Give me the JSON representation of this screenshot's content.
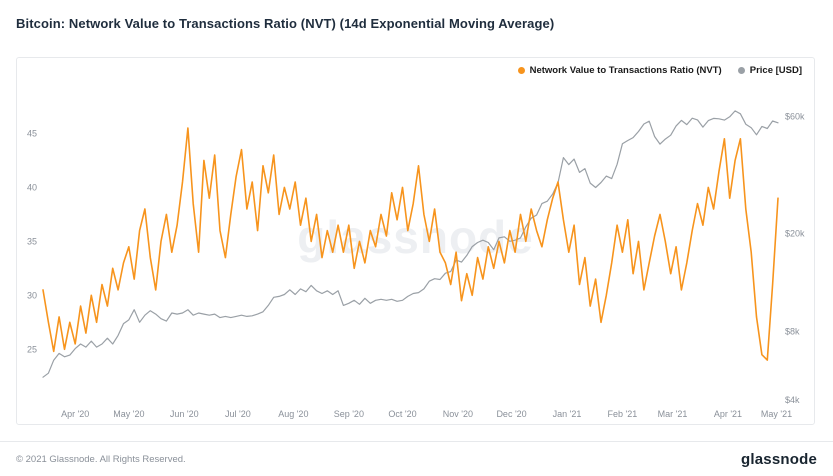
{
  "page": {
    "title": "Bitcoin: Network Value to Transactions Ratio (NVT) (14d Exponential Moving Average)",
    "watermark": "glassnode",
    "footer_copyright": "© 2021 Glassnode. All Rights Reserved.",
    "footer_logo": "glassnode"
  },
  "chart_data": {
    "type": "line",
    "title": "Bitcoin: Network Value to Transactions Ratio (NVT) (14d Exponential Moving Average)",
    "grid": false,
    "legend_position": "top-right",
    "series": [
      {
        "name": "Price [USD]",
        "axis": "right",
        "scale": "log",
        "color": "#9aa0a6",
        "values": [
          5200,
          5400,
          6100,
          6500,
          6300,
          6400,
          6800,
          7100,
          6900,
          7300,
          6900,
          7100,
          7500,
          7100,
          7700,
          8600,
          8900,
          9800,
          8700,
          9300,
          9700,
          9400,
          9000,
          8800,
          9500,
          9400,
          9500,
          9800,
          9300,
          9500,
          9400,
          9300,
          9400,
          9100,
          9200,
          9100,
          9200,
          9300,
          9200,
          9250,
          9400,
          9600,
          10200,
          11000,
          11100,
          11300,
          11800,
          11300,
          11900,
          11600,
          12300,
          11700,
          11400,
          11700,
          11300,
          11700,
          10200,
          10400,
          10700,
          10300,
          10900,
          10400,
          10700,
          10800,
          10700,
          10800,
          10600,
          10700,
          11100,
          11400,
          11500,
          11900,
          12800,
          13100,
          13000,
          13800,
          14000,
          15600,
          15300,
          16300,
          17700,
          18400,
          18800,
          18400,
          17200,
          19200,
          19400,
          18600,
          18800,
          19200,
          21300,
          23100,
          23800,
          26500,
          27100,
          29000,
          32200,
          40800,
          38200,
          40200,
          35500,
          36800,
          32100,
          30800,
          32300,
          34300,
          33500,
          38300,
          46400,
          47900,
          49200,
          52100,
          55900,
          57400,
          49700,
          46300,
          48500,
          50300,
          54900,
          57800,
          55600,
          59000,
          58100,
          54300,
          57700,
          58900,
          58700,
          58000,
          59800,
          63200,
          61500,
          55800,
          54000,
          50500,
          54600,
          53600,
          57500,
          56500
        ]
      },
      {
        "name": "Network Value to Transactions Ratio (NVT)",
        "axis": "left",
        "scale": "linear",
        "color": "#f7941d",
        "values": [
          30.5,
          27.5,
          24.8,
          28.0,
          25.0,
          27.5,
          25.5,
          29.0,
          26.5,
          30.0,
          27.5,
          31.0,
          29.0,
          32.5,
          30.5,
          33.0,
          34.5,
          31.5,
          36.0,
          38.0,
          33.5,
          30.5,
          35.0,
          37.5,
          34.0,
          36.5,
          40.5,
          45.5,
          38.5,
          34.0,
          42.5,
          39.0,
          43.0,
          36.0,
          33.5,
          37.5,
          41.0,
          43.5,
          38.0,
          40.5,
          36.0,
          42.0,
          39.5,
          43.0,
          37.5,
          40.0,
          38.0,
          40.5,
          36.5,
          39.0,
          35.0,
          37.5,
          33.5,
          36.0,
          34.0,
          36.5,
          34.0,
          36.5,
          32.5,
          35.0,
          33.0,
          36.0,
          34.5,
          37.5,
          35.5,
          39.5,
          37.0,
          40.0,
          36.0,
          38.5,
          42.0,
          37.5,
          35.0,
          38.0,
          34.0,
          33.0,
          31.0,
          34.0,
          29.5,
          32.0,
          30.0,
          33.5,
          31.5,
          34.5,
          32.5,
          35.0,
          33.0,
          36.0,
          34.0,
          37.5,
          35.0,
          38.0,
          36.0,
          34.5,
          37.0,
          39.0,
          40.5,
          37.0,
          34.0,
          36.5,
          31.0,
          33.5,
          29.0,
          31.5,
          27.5,
          30.0,
          33.0,
          36.5,
          34.0,
          37.0,
          32.0,
          35.0,
          30.5,
          33.0,
          35.5,
          37.5,
          35.0,
          32.0,
          34.5,
          30.5,
          33.0,
          36.0,
          38.5,
          36.5,
          40.0,
          38.0,
          41.5,
          44.5,
          39.0,
          42.5,
          44.5,
          38.0,
          34.0,
          28.0,
          24.5,
          24.0,
          31.0,
          39.0
        ]
      }
    ],
    "x_ticks": [
      {
        "label": "Apr '20",
        "t": 0.0438
      },
      {
        "label": "May '20",
        "t": 0.1168
      },
      {
        "label": "Jun '20",
        "t": 0.1922
      },
      {
        "label": "Jul '20",
        "t": 0.2652
      },
      {
        "label": "Aug '20",
        "t": 0.3406
      },
      {
        "label": "Sep '20",
        "t": 0.4161
      },
      {
        "label": "Oct '20",
        "t": 0.4891
      },
      {
        "label": "Nov '20",
        "t": 0.5645
      },
      {
        "label": "Dec '20",
        "t": 0.6375
      },
      {
        "label": "Jan '21",
        "t": 0.7129
      },
      {
        "label": "Feb '21",
        "t": 0.7883
      },
      {
        "label": "Mar '21",
        "t": 0.8565
      },
      {
        "label": "Apr '21",
        "t": 0.9319
      },
      {
        "label": "May '21",
        "t": 0.998
      }
    ],
    "left_axis": {
      "ticks": [
        45,
        40,
        35,
        30,
        25
      ],
      "range": [
        20.3,
        48.1
      ]
    },
    "right_axis": {
      "scale": "log",
      "range": [
        4200,
        70000
      ],
      "ticks": [
        {
          "label": "$60k",
          "value": 60000
        },
        {
          "label": "$20k",
          "value": 20000
        },
        {
          "label": "$8k",
          "value": 8000
        },
        {
          "label": "$4k",
          "value": 4200
        }
      ]
    }
  }
}
